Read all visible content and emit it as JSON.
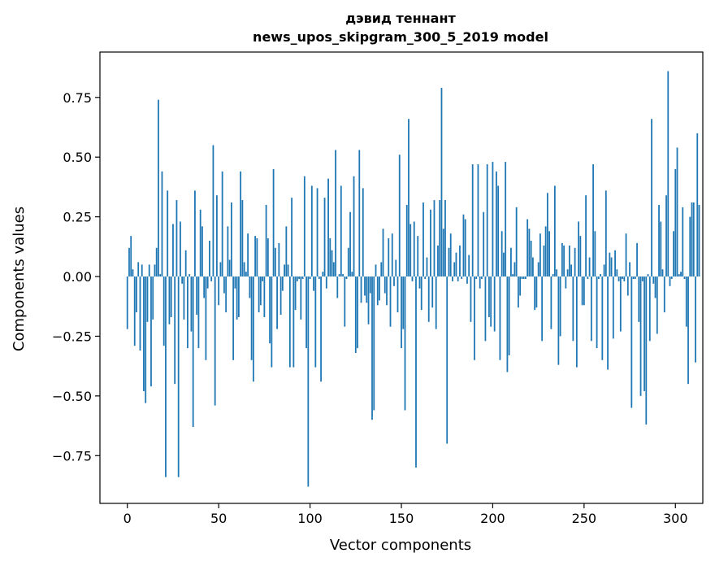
{
  "chart_data": {
    "type": "bar",
    "title": "дэвид теннант",
    "subtitle": "news_upos_skipgram_300_5_2019 model",
    "xlabel": "Vector components",
    "ylabel": "Components values",
    "xlim": [
      -15,
      315
    ],
    "ylim": [
      -0.95,
      0.94
    ],
    "xticks": [
      0,
      50,
      100,
      150,
      200,
      250,
      300
    ],
    "xtick_labels": [
      "0",
      "50",
      "100",
      "150",
      "200",
      "250",
      "300"
    ],
    "yticks": [
      -0.75,
      -0.5,
      -0.25,
      0.0,
      0.25,
      0.5,
      0.75
    ],
    "ytick_labels": [
      "−0.75",
      "−0.50",
      "−0.25",
      "0.00",
      "0.25",
      "0.50",
      "0.75"
    ],
    "grid": false,
    "bar_color": "#1f77b4",
    "values": [
      -0.22,
      0.12,
      0.17,
      0.03,
      -0.29,
      -0.15,
      0.06,
      -0.31,
      0.05,
      -0.48,
      -0.53,
      -0.19,
      0.05,
      -0.46,
      -0.18,
      0.05,
      0.12,
      0.74,
      0.01,
      0.44,
      -0.29,
      -0.84,
      0.36,
      -0.2,
      -0.17,
      0.22,
      -0.45,
      0.32,
      -0.84,
      0.23,
      -0.03,
      -0.18,
      0.11,
      -0.3,
      0.01,
      -0.23,
      -0.63,
      0.36,
      -0.16,
      -0.3,
      0.28,
      0.21,
      -0.09,
      -0.35,
      -0.05,
      0.15,
      -0.02,
      0.55,
      -0.54,
      0.34,
      -0.12,
      0.06,
      0.44,
      -0.07,
      -0.15,
      0.21,
      0.07,
      0.31,
      -0.35,
      -0.05,
      -0.18,
      -0.17,
      0.44,
      0.32,
      0.06,
      0.02,
      0.18,
      -0.09,
      -0.35,
      -0.44,
      0.17,
      0.16,
      -0.15,
      -0.12,
      -0.02,
      -0.17,
      0.3,
      0.16,
      -0.28,
      -0.38,
      0.45,
      0.12,
      -0.22,
      0.14,
      -0.16,
      -0.06,
      0.05,
      0.21,
      0.05,
      -0.38,
      0.33,
      -0.38,
      -0.14,
      -0.02,
      -0.01,
      -0.18,
      -0.01,
      0.42,
      -0.3,
      -0.88,
      -0.01,
      0.38,
      -0.06,
      -0.38,
      0.37,
      -0.01,
      -0.44,
      0.02,
      0.33,
      -0.05,
      0.41,
      0.16,
      0.11,
      0.06,
      0.53,
      -0.09,
      0.01,
      0.38,
      0.01,
      -0.21,
      -0.01,
      0.12,
      0.27,
      0.02,
      0.42,
      -0.32,
      -0.3,
      0.53,
      -0.11,
      0.37,
      -0.08,
      -0.11,
      -0.2,
      -0.07,
      -0.6,
      -0.56,
      0.05,
      -0.12,
      -0.1,
      0.06,
      0.2,
      -0.07,
      -0.12,
      0.16,
      -0.21,
      0.18,
      -0.04,
      0.07,
      -0.15,
      0.51,
      -0.3,
      -0.22,
      -0.56,
      0.3,
      0.66,
      0.22,
      -0.02,
      0.23,
      -0.8,
      0.17,
      -0.05,
      -0.14,
      0.31,
      -0.01,
      0.08,
      -0.19,
      0.28,
      -0.13,
      0.32,
      -0.22,
      0.13,
      0.32,
      0.79,
      0.2,
      0.32,
      -0.7,
      0.12,
      0.18,
      -0.02,
      0.06,
      0.1,
      -0.02,
      0.13,
      -0.01,
      0.26,
      0.24,
      -0.03,
      0.09,
      -0.19,
      0.47,
      -0.35,
      -0.01,
      0.47,
      -0.05,
      -0.01,
      0.27,
      -0.27,
      0.47,
      -0.17,
      -0.21,
      0.48,
      -0.23,
      0.44,
      0.38,
      -0.35,
      0.19,
      0.1,
      0.48,
      -0.4,
      -0.33,
      0.12,
      0.01,
      0.06,
      0.29,
      -0.13,
      -0.08,
      -0.01,
      -0.01,
      -0.01,
      0.24,
      0.2,
      0.15,
      0.08,
      -0.14,
      -0.13,
      0.06,
      0.18,
      -0.27,
      0.13,
      0.21,
      0.35,
      0.19,
      -0.22,
      0.01,
      0.38,
      0.03,
      -0.37,
      -0.25,
      0.14,
      0.13,
      -0.05,
      0.03,
      0.13,
      0.05,
      -0.27,
      0.12,
      -0.38,
      0.23,
      0.17,
      -0.12,
      -0.12,
      0.34,
      -0.01,
      0.08,
      -0.27,
      0.47,
      0.19,
      -0.3,
      -0.01,
      0.01,
      -0.35,
      0.05,
      0.36,
      -0.39,
      0.1,
      0.08,
      -0.26,
      0.11,
      0.03,
      -0.02,
      -0.23,
      -0.01,
      -0.02,
      0.18,
      -0.08,
      0.06,
      -0.55,
      -0.01,
      -0.01,
      0.14,
      -0.19,
      -0.5,
      -0.02,
      -0.48,
      -0.62,
      0.01,
      -0.27,
      0.66,
      -0.03,
      -0.09,
      -0.24,
      0.3,
      0.23,
      0.03,
      -0.15,
      0.34,
      0.86,
      -0.04,
      -0.01,
      0.19,
      0.45,
      0.54,
      0.01,
      0.02,
      0.29,
      -0.01,
      -0.21,
      -0.45,
      0.25,
      0.31,
      0.31,
      -0.36,
      0.6,
      0.3
    ],
    "values_note": "Heights read off the axis, rounded to 0.01; index = x position."
  }
}
